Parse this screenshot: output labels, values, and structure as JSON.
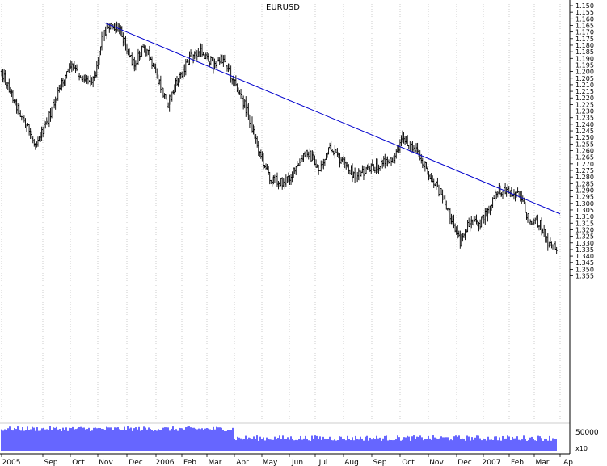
{
  "chart_data": {
    "type": "ohlc-bar",
    "title": "EURUSD",
    "y_axis": {
      "inverted": true,
      "position": "right",
      "range": [
        1.15,
        1.355
      ],
      "ticks": [
        "1.150",
        "1.155",
        "1.160",
        "1.165",
        "1.170",
        "1.175",
        "1.180",
        "1.185",
        "1.190",
        "1.195",
        "1.200",
        "1.205",
        "1.210",
        "1.215",
        "1.220",
        "1.225",
        "1.230",
        "1.235",
        "1.240",
        "1.245",
        "1.250",
        "1.255",
        "1.260",
        "1.265",
        "1.270",
        "1.275",
        "1.280",
        "1.285",
        "1.290",
        "1.295",
        "1.300",
        "1.305",
        "1.310",
        "1.315",
        "1.320",
        "1.325",
        "1.330",
        "1.335",
        "1.340",
        "1.345",
        "1.350",
        "1.355"
      ]
    },
    "x_axis": {
      "labels": [
        "2005",
        "Sep",
        "Oct",
        "Nov",
        "Dec",
        "2006",
        "Feb",
        "Mar",
        "Apr",
        "May",
        "Jun",
        "Jul",
        "Aug",
        "Sep",
        "Oct",
        "Nov",
        "Dec",
        "2007",
        "Feb",
        "Mar",
        "Ap"
      ]
    },
    "price_anchors": [
      {
        "date": "2005-08-01",
        "price": 1.2
      },
      {
        "date": "2005-08-12",
        "price": 1.225
      },
      {
        "date": "2005-08-26",
        "price": 1.255
      },
      {
        "date": "2005-09-05",
        "price": 1.24
      },
      {
        "date": "2005-09-20",
        "price": 1.212
      },
      {
        "date": "2005-10-01",
        "price": 1.195
      },
      {
        "date": "2005-10-15",
        "price": 1.205
      },
      {
        "date": "2005-10-28",
        "price": 1.205
      },
      {
        "date": "2005-11-05",
        "price": 1.175
      },
      {
        "date": "2005-11-12",
        "price": 1.165
      },
      {
        "date": "2005-11-25",
        "price": 1.17
      },
      {
        "date": "2005-12-08",
        "price": 1.195
      },
      {
        "date": "2005-12-20",
        "price": 1.18
      },
      {
        "date": "2006-01-02",
        "price": 1.205
      },
      {
        "date": "2006-01-15",
        "price": 1.225
      },
      {
        "date": "2006-01-28",
        "price": 1.205
      },
      {
        "date": "2006-02-10",
        "price": 1.19
      },
      {
        "date": "2006-02-24",
        "price": 1.185
      },
      {
        "date": "2006-03-08",
        "price": 1.195
      },
      {
        "date": "2006-03-20",
        "price": 1.19
      },
      {
        "date": "2006-04-02",
        "price": 1.21
      },
      {
        "date": "2006-04-15",
        "price": 1.23
      },
      {
        "date": "2006-04-28",
        "price": 1.26
      },
      {
        "date": "2006-05-10",
        "price": 1.28
      },
      {
        "date": "2006-05-25",
        "price": 1.285
      },
      {
        "date": "2006-06-08",
        "price": 1.275
      },
      {
        "date": "2006-06-22",
        "price": 1.26
      },
      {
        "date": "2006-07-05",
        "price": 1.275
      },
      {
        "date": "2006-07-18",
        "price": 1.258
      },
      {
        "date": "2006-08-01",
        "price": 1.27
      },
      {
        "date": "2006-08-15",
        "price": 1.28
      },
      {
        "date": "2006-08-28",
        "price": 1.275
      },
      {
        "date": "2006-09-10",
        "price": 1.27
      },
      {
        "date": "2006-09-25",
        "price": 1.265
      },
      {
        "date": "2006-10-03",
        "price": 1.25
      },
      {
        "date": "2006-10-18",
        "price": 1.26
      },
      {
        "date": "2006-10-31",
        "price": 1.275
      },
      {
        "date": "2006-11-12",
        "price": 1.29
      },
      {
        "date": "2006-11-25",
        "price": 1.31
      },
      {
        "date": "2006-12-05",
        "price": 1.33
      },
      {
        "date": "2006-12-15",
        "price": 1.315
      },
      {
        "date": "2006-12-28",
        "price": 1.315
      },
      {
        "date": "2007-01-08",
        "price": 1.305
      },
      {
        "date": "2007-01-18",
        "price": 1.29
      },
      {
        "date": "2007-02-01",
        "price": 1.29
      },
      {
        "date": "2007-02-12",
        "price": 1.295
      },
      {
        "date": "2007-02-25",
        "price": 1.315
      },
      {
        "date": "2007-03-08",
        "price": 1.315
      },
      {
        "date": "2007-03-18",
        "price": 1.33
      },
      {
        "date": "2007-03-28",
        "price": 1.335
      }
    ],
    "trendline": {
      "start": {
        "date": "2005-11-08",
        "price": 1.163
      },
      "end": {
        "date": "2007-04-01",
        "price": 1.308
      },
      "color": "#0000cc"
    },
    "volume_panel": {
      "label": "50000",
      "multiplier_label": "x10",
      "color": "#0000ff"
    },
    "colors": {
      "bars": "#000000",
      "grid": "#999999",
      "trendline": "#0000cc",
      "volume": "#0000ff"
    }
  }
}
